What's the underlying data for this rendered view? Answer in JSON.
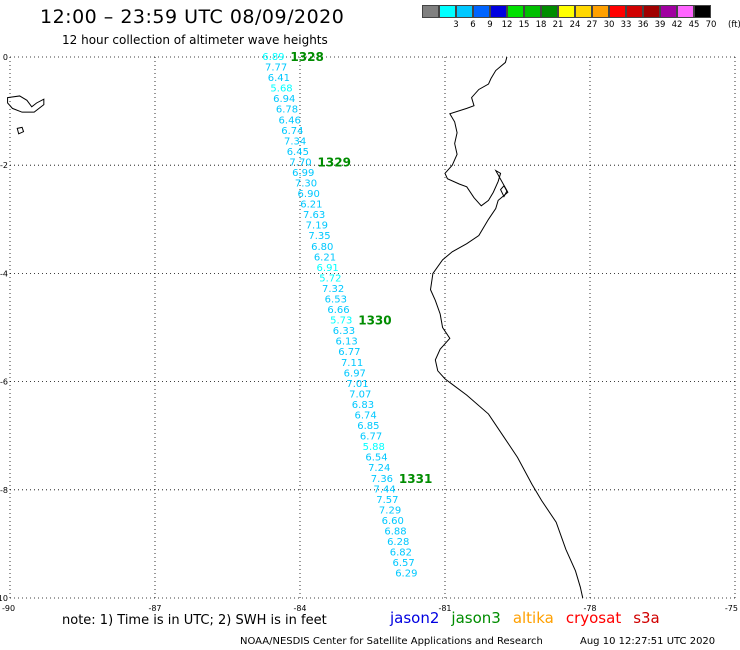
{
  "header": {
    "title": "12:00 – 23:59 UTC 08/09/2020",
    "subtitle": "12 hour collection of altimeter wave heights"
  },
  "legend": {
    "unit": "(ft)",
    "items": [
      {
        "label": "",
        "color": "#808080"
      },
      {
        "label": "3",
        "color": "#00ffff"
      },
      {
        "label": "6",
        "color": "#00c8ff"
      },
      {
        "label": "9",
        "color": "#0064ff"
      },
      {
        "label": "12",
        "color": "#0000e0"
      },
      {
        "label": "15",
        "color": "#00e000"
      },
      {
        "label": "18",
        "color": "#00c000"
      },
      {
        "label": "21",
        "color": "#008c00"
      },
      {
        "label": "24",
        "color": "#ffff00"
      },
      {
        "label": "27",
        "color": "#ffd700"
      },
      {
        "label": "30",
        "color": "#ffa000"
      },
      {
        "label": "33",
        "color": "#ff0000"
      },
      {
        "label": "36",
        "color": "#d00000"
      },
      {
        "label": "39",
        "color": "#a00000"
      },
      {
        "label": "42",
        "color": "#a000a0"
      },
      {
        "label": "45",
        "color": "#ff64ff"
      },
      {
        "label": "70",
        "color": "#000000"
      }
    ]
  },
  "map": {
    "lon_range": [
      -90,
      -75
    ],
    "lat_range": [
      -10,
      0
    ],
    "x_ticks": [
      {
        "value": -90,
        "label": "-90"
      },
      {
        "value": -87,
        "label": "-87"
      },
      {
        "value": -84,
        "label": "-84"
      },
      {
        "value": -81,
        "label": "-81"
      },
      {
        "value": -78,
        "label": "-78"
      },
      {
        "value": -75,
        "label": "-75"
      }
    ],
    "y_ticks": [
      {
        "value": 0,
        "label": "0"
      },
      {
        "value": -2,
        "label": "-2"
      },
      {
        "value": -4,
        "label": "-4"
      },
      {
        "value": -6,
        "label": "-6"
      },
      {
        "value": -8,
        "label": "-8"
      },
      {
        "value": -10,
        "label": "-10"
      }
    ],
    "gridlines": true,
    "track_color": "#00c8ff",
    "highlight_color": "#00ffff",
    "time_color": "#008c00",
    "track": {
      "lon_start": -84.55,
      "lon_end": -81.8,
      "lat_start": 0.0,
      "lat_end": -9.55,
      "values": [
        "6.89",
        "7.77",
        "6.41",
        "5.68",
        "6.94",
        "6.78",
        "6.46",
        "6.74",
        "7.34",
        "6.45",
        "7.70",
        "6.99",
        "7.30",
        "6.90",
        "6.21",
        "7.63",
        "7.19",
        "7.35",
        "6.80",
        "6.21",
        "6.91",
        "5.72",
        "7.32",
        "6.53",
        "6.66",
        "5.73",
        "6.33",
        "6.13",
        "6.77",
        "7.11",
        "6.97",
        "7.01",
        "7.07",
        "6.83",
        "6.74",
        "6.85",
        "6.77",
        "5.88",
        "6.54",
        "7.24",
        "7.36",
        "7.44",
        "7.57",
        "7.29",
        "6.60",
        "6.88",
        "6.28",
        "6.82",
        "6.57",
        "6.29"
      ],
      "highlight_indices": [
        0,
        3,
        20,
        21,
        25,
        37
      ]
    },
    "times": [
      {
        "label": "1328",
        "index": 0
      },
      {
        "label": "1329",
        "index": 10
      },
      {
        "label": "1330",
        "index": 25
      },
      {
        "label": "1331",
        "index": 40
      }
    ],
    "coastline": [
      [
        -79.72,
        0.0
      ],
      [
        -79.75,
        -0.1
      ],
      [
        -79.95,
        -0.25
      ],
      [
        -80.05,
        -0.4
      ],
      [
        -80.1,
        -0.5
      ],
      [
        -80.3,
        -0.6
      ],
      [
        -80.45,
        -0.75
      ],
      [
        -80.4,
        -0.9
      ],
      [
        -80.55,
        -0.95
      ],
      [
        -80.9,
        -1.05
      ],
      [
        -80.8,
        -1.2
      ],
      [
        -80.75,
        -1.4
      ],
      [
        -80.8,
        -1.6
      ],
      [
        -80.75,
        -1.8
      ],
      [
        -80.85,
        -2.0
      ],
      [
        -81.0,
        -2.15
      ],
      [
        -80.95,
        -2.25
      ],
      [
        -80.7,
        -2.35
      ],
      [
        -80.55,
        -2.4
      ],
      [
        -80.4,
        -2.6
      ],
      [
        -80.25,
        -2.75
      ],
      [
        -80.1,
        -2.65
      ],
      [
        -80.0,
        -2.5
      ],
      [
        -79.9,
        -2.3
      ],
      [
        -79.85,
        -2.15
      ],
      [
        -79.95,
        -2.1
      ],
      [
        -79.7,
        -2.5
      ],
      [
        -79.9,
        -2.65
      ],
      [
        -79.95,
        -2.8
      ],
      [
        -80.1,
        -3.0
      ],
      [
        -80.3,
        -3.3
      ],
      [
        -80.55,
        -3.45
      ],
      [
        -80.85,
        -3.6
      ],
      [
        -81.05,
        -3.75
      ],
      [
        -81.25,
        -4.0
      ],
      [
        -81.3,
        -4.3
      ],
      [
        -81.2,
        -4.5
      ],
      [
        -81.1,
        -4.75
      ],
      [
        -81.05,
        -5.0
      ],
      [
        -80.9,
        -5.2
      ],
      [
        -81.1,
        -5.4
      ],
      [
        -81.2,
        -5.6
      ],
      [
        -81.15,
        -5.8
      ],
      [
        -81.0,
        -5.95
      ],
      [
        -80.85,
        -6.05
      ],
      [
        -80.55,
        -6.25
      ],
      [
        -80.1,
        -6.6
      ],
      [
        -79.8,
        -7.0
      ],
      [
        -79.5,
        -7.4
      ],
      [
        -79.2,
        -7.9
      ],
      [
        -79.0,
        -8.2
      ],
      [
        -78.7,
        -8.6
      ],
      [
        -78.5,
        -9.1
      ],
      [
        -78.3,
        -9.5
      ],
      [
        -78.2,
        -9.8
      ],
      [
        -78.15,
        -10.0
      ]
    ],
    "islands": [
      [
        [
          -90.05,
          -0.75
        ],
        [
          -89.8,
          -0.72
        ],
        [
          -89.65,
          -0.8
        ],
        [
          -89.55,
          -0.92
        ],
        [
          -89.45,
          -0.85
        ],
        [
          -89.3,
          -0.78
        ],
        [
          -89.3,
          -0.88
        ],
        [
          -89.5,
          -1.02
        ],
        [
          -89.75,
          -1.02
        ],
        [
          -89.95,
          -0.95
        ],
        [
          -90.05,
          -0.85
        ]
      ],
      [
        [
          -89.85,
          -1.32
        ],
        [
          -89.75,
          -1.3
        ],
        [
          -89.72,
          -1.38
        ],
        [
          -89.82,
          -1.42
        ]
      ],
      [
        [
          -79.85,
          -2.45
        ],
        [
          -79.78,
          -2.38
        ],
        [
          -79.72,
          -2.48
        ],
        [
          -79.78,
          -2.58
        ]
      ]
    ]
  },
  "footer": {
    "note": "note: 1) Time is in UTC; 2) SWH is in feet",
    "missions": [
      {
        "label": "jason2",
        "color": "#0000e0"
      },
      {
        "label": "jason3",
        "color": "#008c00"
      },
      {
        "label": "altika",
        "color": "#ffa000"
      },
      {
        "label": "cryosat",
        "color": "#ff0000"
      },
      {
        "label": "s3a",
        "color": "#d00000"
      }
    ],
    "credit": "NOAA/NESDIS Center for Satellite Applications and Research",
    "timestamp": "Aug 10 12:27:51 UTC 2020"
  }
}
